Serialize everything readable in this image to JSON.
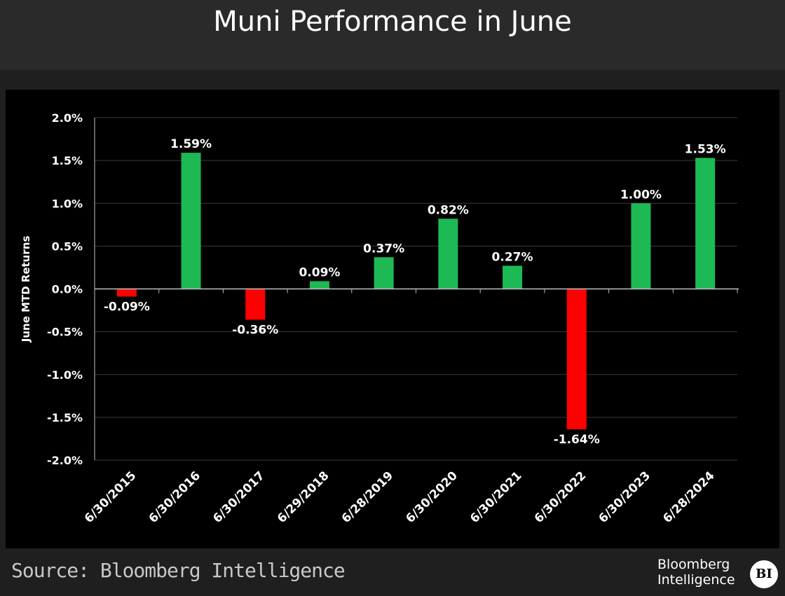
{
  "header": {
    "title": "Muni Performance in June"
  },
  "footer": {
    "source": "Source: Bloomberg Intelligence",
    "logo_line1": "Bloomberg",
    "logo_line2": "Intelligence",
    "logo_badge": "BI"
  },
  "chart_data": {
    "type": "bar",
    "title": "Muni Performance in June",
    "xlabel": "",
    "ylabel": "June MTD Returns",
    "ylim": [
      -2.0,
      2.0
    ],
    "yticks": [
      2.0,
      1.5,
      1.0,
      0.5,
      0.0,
      -0.5,
      -1.0,
      -1.5,
      -2.0
    ],
    "ytick_labels": [
      "2.0%",
      "1.5%",
      "1.0%",
      "0.5%",
      "0.0%",
      "-0.5%",
      "-1.0%",
      "-1.5%",
      "-2.0%"
    ],
    "categories": [
      "6/30/2015",
      "6/30/2016",
      "6/30/2017",
      "6/29/2018",
      "6/28/2019",
      "6/30/2020",
      "6/30/2021",
      "6/30/2022",
      "6/30/2023",
      "6/28/2024"
    ],
    "values": [
      -0.09,
      1.59,
      -0.36,
      0.09,
      0.37,
      0.82,
      0.27,
      -1.64,
      1.0,
      1.53
    ],
    "data_labels": [
      "-0.09%",
      "1.59%",
      "-0.36%",
      "0.09%",
      "0.37%",
      "0.82%",
      "0.27%",
      "-1.64%",
      "1.00%",
      "1.53%"
    ],
    "grid": true,
    "legend": "none",
    "colors": {
      "positive": "#1db954",
      "negative": "#ff0000",
      "grid": "#3a3a3a",
      "axis": "#bfbfbf",
      "text": "#ffffff"
    }
  }
}
